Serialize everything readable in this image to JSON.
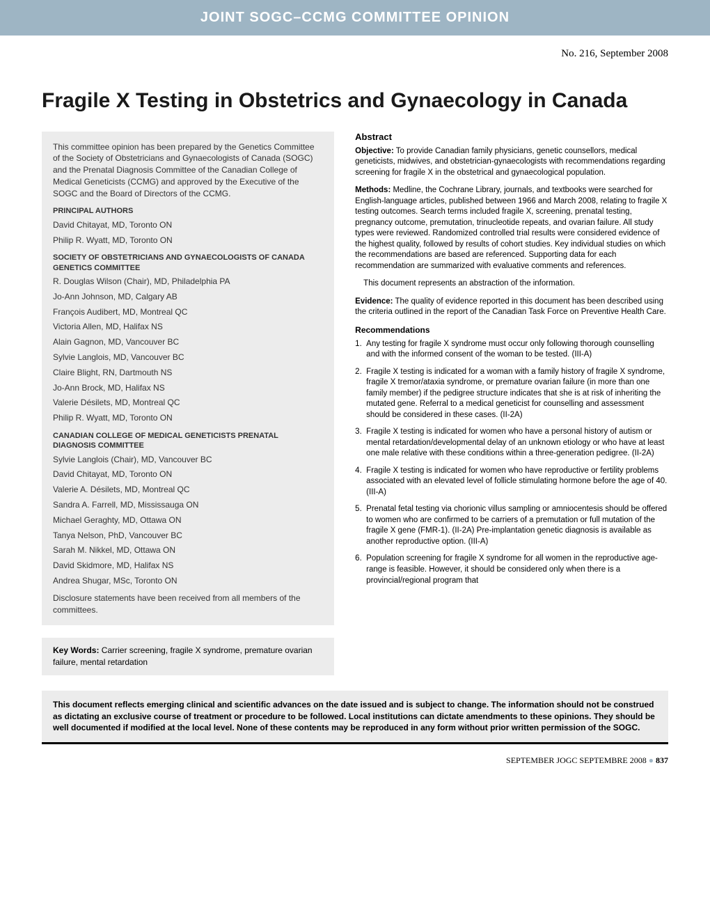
{
  "banner": "JOINT SOGC–CCMG COMMITTEE OPINION",
  "issue": "No. 216, September 2008",
  "title": "Fragile X Testing in Obstetrics and Gynaecology in Canada",
  "intro": "This committee opinion has been prepared by the Genetics Committee of the Society of Obstetricians and Gynaecologists of Canada (SOGC) and the Prenatal Diagnosis Committee of the Canadian College of Medical Geneticists (CCMG) and approved by the Executive of the SOGC and the Board of Directors of the CCMG.",
  "principal_heading": "PRINCIPAL AUTHORS",
  "principal_authors": [
    "David Chitayat, MD, Toronto ON",
    "Philip R. Wyatt, MD, Toronto ON"
  ],
  "sogc_heading": "SOCIETY OF OBSTETRICIANS AND GYNAECOLOGISTS OF CANADA GENETICS COMMITTEE",
  "sogc_members": [
    "R. Douglas Wilson (Chair), MD, Philadelphia PA",
    "Jo-Ann Johnson, MD, Calgary AB",
    "François Audibert, MD, Montreal QC",
    "Victoria Allen, MD, Halifax NS",
    "Alain Gagnon, MD, Vancouver BC",
    "Sylvie Langlois, MD, Vancouver BC",
    "Claire Blight, RN, Dartmouth NS",
    "Jo-Ann Brock, MD, Halifax NS",
    "Valerie Désilets, MD, Montreal QC",
    "Philip R. Wyatt, MD, Toronto ON"
  ],
  "ccmg_heading": "CANADIAN COLLEGE OF MEDICAL GENETICISTS PRENATAL DIAGNOSIS COMMITTEE",
  "ccmg_members": [
    "Sylvie Langlois (Chair), MD, Vancouver BC",
    "David Chitayat, MD, Toronto ON",
    "Valerie A. Désilets, MD, Montreal QC",
    "Sandra A. Farrell, MD, Mississauga ON",
    "Michael Geraghty, MD, Ottawa ON",
    "Tanya Nelson, PhD, Vancouver BC",
    "Sarah M. Nikkel, MD, Ottawa ON",
    "David Skidmore, MD, Halifax NS",
    "Andrea Shugar, MSc, Toronto ON"
  ],
  "disclosure": "Disclosure statements have been received from all members of the committees.",
  "keywords_label": "Key Words:",
  "keywords": " Carrier screening, fragile X syndrome, premature ovarian failure, mental retardation",
  "abstract_heading": "Abstract",
  "objective_label": "Objective:",
  "objective": " To provide Canadian family physicians, genetic counsellors, medical geneticists, midwives, and obstetrician-gynaecologists with recommendations regarding screening for fragile X in the obstetrical and gynaecological population.",
  "methods_label": "Methods:",
  "methods": " Medline, the Cochrane Library, journals, and textbooks were searched for English-language articles, published between 1966 and March 2008, relating to fragile X testing outcomes. Search terms included fragile X, screening, prenatal testing, pregnancy outcome, premutation, trinucleotide repeats, and ovarian failure. All study types were reviewed. Randomized controlled trial results were considered evidence of the highest quality, followed by results of cohort studies. Key individual studies on which the recommendations are based are referenced. Supporting data for each recommendation are summarized with evaluative comments and references.",
  "abstraction_note": "This document represents an abstraction of the information.",
  "evidence_label": "Evidence:",
  "evidence": " The quality of evidence reported in this document has been described using the criteria outlined in the report of the Canadian Task Force on Preventive Health Care.",
  "recs_heading": "Recommendations",
  "recs": [
    "Any testing for fragile X syndrome must occur only following thorough counselling and with the informed consent of the woman to be tested. (III-A)",
    "Fragile X testing is indicated for a woman with a family history of fragile X syndrome, fragile X tremor/ataxia syndrome, or premature ovarian failure (in more than one family member) if the pedigree structure indicates that she is at risk of inheriting the mutated gene. Referral to a medical geneticist for counselling and assessment should be considered in these cases. (II-2A)",
    "Fragile X testing is indicated for women who have a personal history of autism or mental retardation/developmental delay of an unknown etiology or who have at least one male relative with these conditions within a three-generation pedigree. (II-2A)",
    "Fragile X testing is indicated for women who have reproductive or fertility problems associated with an elevated level of follicle stimulating hormone before the age of 40. (III-A)",
    "Prenatal fetal testing via chorionic villus sampling or amniocentesis should be offered to women who are confirmed to be carriers of a premutation or full mutation of the fragile X gene (FMR-1). (II-2A) Pre-implantation genetic diagnosis is available as another reproductive option. (III-A)",
    "Population screening for fragile X syndrome for all women in the reproductive age-range is feasible. However, it should be considered only when there is a provincial/regional program that"
  ],
  "disclaimer": "This document reflects emerging clinical and scientific advances on the date issued and is subject to change. The information should not be construed as dictating an exclusive course of treatment or procedure to be followed. Local institutions can dictate amendments to these opinions. They should be well documented if modified at the local level. None of these contents may be reproduced in any form without prior written permission of the SOGC.",
  "footer_left": "SEPTEMBER JOGC SEPTEMBRE 2008",
  "footer_page": "837"
}
